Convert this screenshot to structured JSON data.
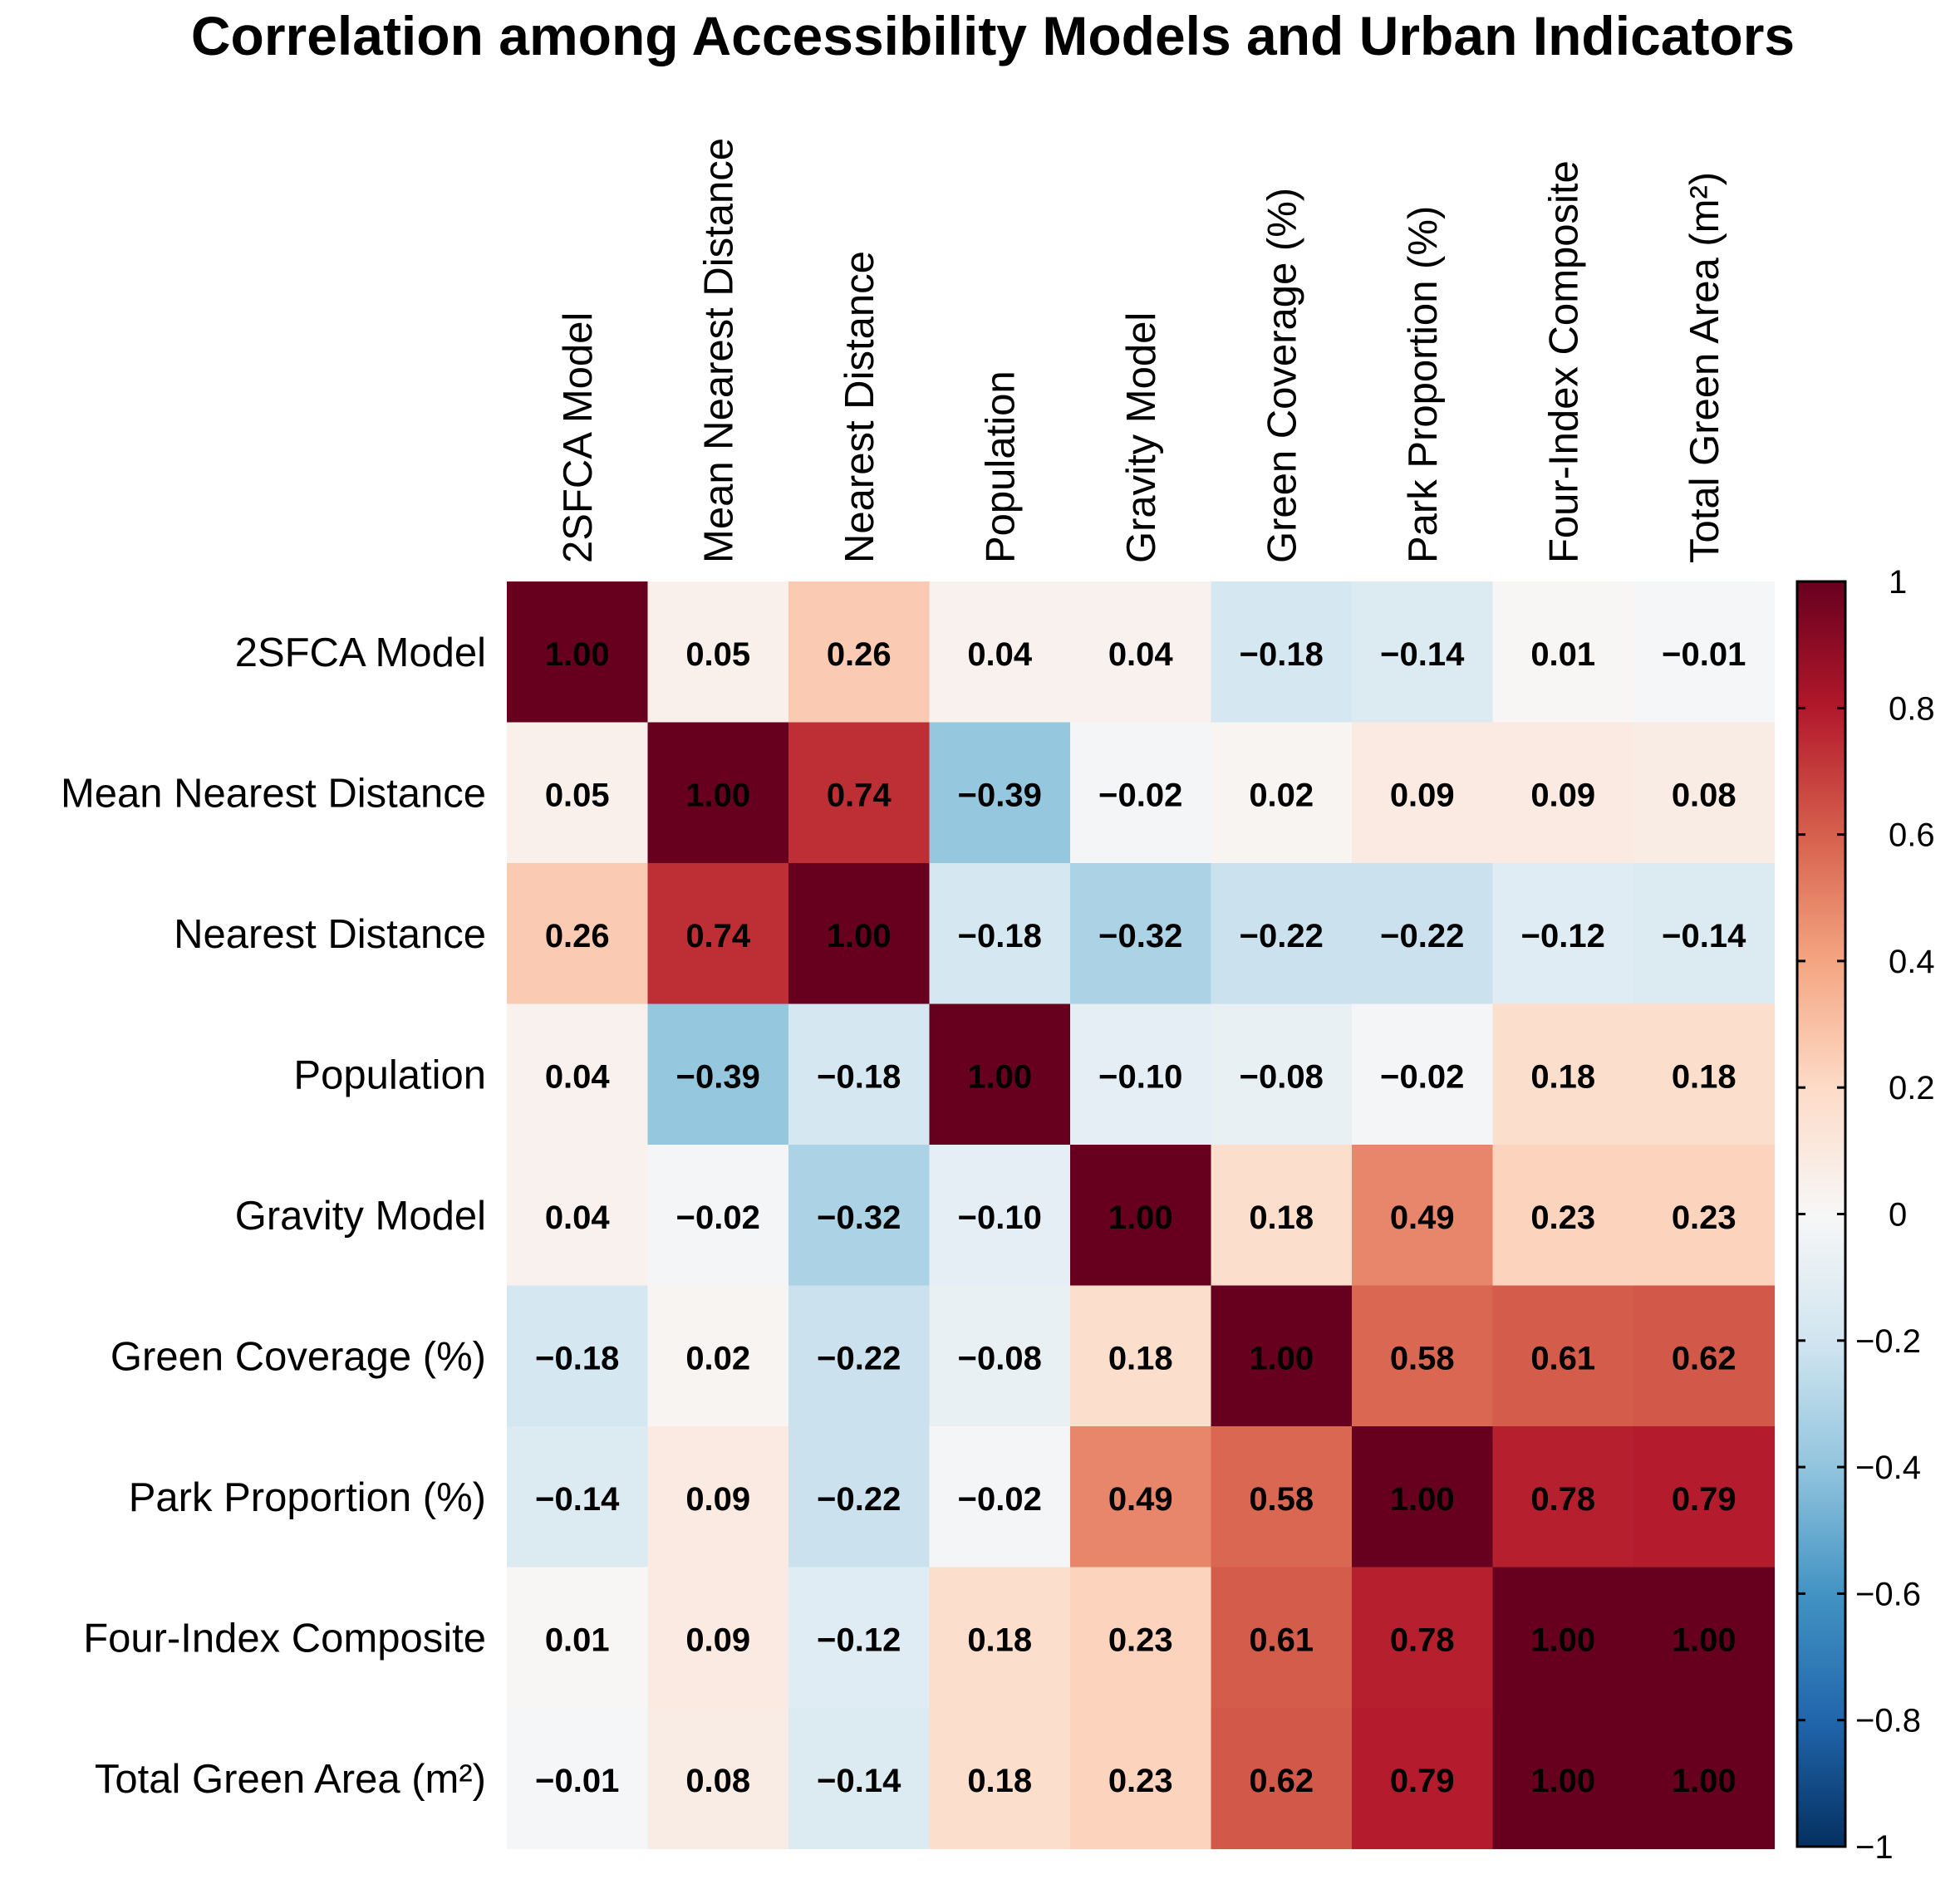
{
  "chart_data": {
    "type": "heatmap",
    "title": "Correlation among Accessibility Models and Urban Indicators",
    "labels": [
      "2SFCA Model",
      "Mean Nearest Distance",
      "Nearest Distance",
      "Population",
      "Gravity Model",
      "Green Coverage (%)",
      "Park Proportion (%)",
      "Four-Index Composite",
      "Total Green Area (m²)"
    ],
    "values": [
      [
        1.0,
        0.05,
        0.26,
        0.04,
        0.04,
        -0.18,
        -0.14,
        0.01,
        -0.01
      ],
      [
        0.05,
        1.0,
        0.74,
        -0.39,
        -0.02,
        0.02,
        0.09,
        0.09,
        0.08
      ],
      [
        0.26,
        0.74,
        1.0,
        -0.18,
        -0.32,
        -0.22,
        -0.22,
        -0.12,
        -0.14
      ],
      [
        0.04,
        -0.39,
        -0.18,
        1.0,
        -0.1,
        -0.08,
        -0.02,
        0.18,
        0.18
      ],
      [
        0.04,
        -0.02,
        -0.32,
        -0.1,
        1.0,
        0.18,
        0.49,
        0.23,
        0.23
      ],
      [
        -0.18,
        0.02,
        -0.22,
        -0.08,
        0.18,
        1.0,
        0.58,
        0.61,
        0.62
      ],
      [
        -0.14,
        0.09,
        -0.22,
        -0.02,
        0.49,
        0.58,
        1.0,
        0.78,
        0.79
      ],
      [
        0.01,
        0.09,
        -0.12,
        0.18,
        0.23,
        0.61,
        0.78,
        1.0,
        1.0
      ],
      [
        -0.01,
        0.08,
        -0.14,
        0.18,
        0.23,
        0.62,
        0.79,
        1.0,
        1.0
      ]
    ],
    "value_labels": [
      [
        "1.00",
        "0.05",
        "0.26",
        "0.04",
        "0.04",
        "−0.18",
        "−0.14",
        "0.01",
        "−0.01"
      ],
      [
        "0.05",
        "1.00",
        "0.74",
        "−0.39",
        "−0.02",
        "0.02",
        "0.09",
        "0.09",
        "0.08"
      ],
      [
        "0.26",
        "0.74",
        "1.00",
        "−0.18",
        "−0.32",
        "−0.22",
        "−0.22",
        "−0.12",
        "−0.14"
      ],
      [
        "0.04",
        "−0.39",
        "−0.18",
        "1.00",
        "−0.10",
        "−0.08",
        "−0.02",
        "0.18",
        "0.18"
      ],
      [
        "0.04",
        "−0.02",
        "−0.32",
        "−0.10",
        "1.00",
        "0.18",
        "0.49",
        "0.23",
        "0.23"
      ],
      [
        "−0.18",
        "0.02",
        "−0.22",
        "−0.08",
        "0.18",
        "1.00",
        "0.58",
        "0.61",
        "0.62"
      ],
      [
        "−0.14",
        "0.09",
        "−0.22",
        "−0.02",
        "0.49",
        "0.58",
        "1.00",
        "0.78",
        "0.79"
      ],
      [
        "0.01",
        "0.09",
        "−0.12",
        "0.18",
        "0.23",
        "0.61",
        "0.78",
        "1.00",
        "1.00"
      ],
      [
        "−0.01",
        "0.08",
        "−0.14",
        "0.18",
        "0.23",
        "0.62",
        "0.79",
        "1.00",
        "1.00"
      ]
    ],
    "colorbar": {
      "range": [
        -1,
        1
      ],
      "ticks": [
        1,
        0.8,
        0.6,
        0.4,
        0.2,
        0,
        -0.2,
        -0.4,
        -0.6,
        -0.8,
        -1
      ],
      "tick_labels": [
        "1",
        "0.8",
        "0.6",
        "0.4",
        "0.2",
        "0",
        "−0.2",
        "−0.4",
        "−0.6",
        "−0.8",
        "−1"
      ]
    },
    "colormap": {
      "name": "RdBu_r",
      "stops": [
        "#053061",
        "#2166ac",
        "#4393c3",
        "#92c5de",
        "#d1e5f0",
        "#f7f7f7",
        "#fddbc7",
        "#f4a582",
        "#d6604d",
        "#b2182b",
        "#67001f"
      ]
    },
    "legend_position": "right"
  }
}
